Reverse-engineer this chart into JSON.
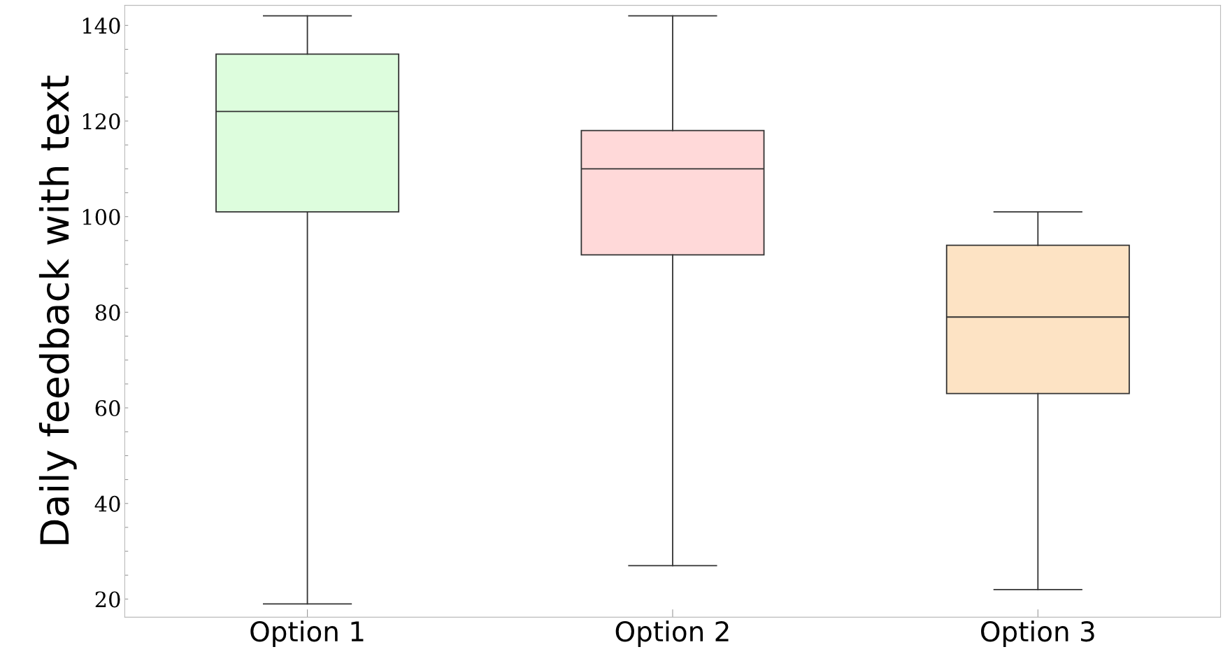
{
  "chart_data": {
    "type": "box",
    "ylabel": "Daily feedback with text",
    "categories": [
      "Option 1",
      "Option 2",
      "Option 3"
    ],
    "colors": [
      "#ddfddd",
      "#ffd9d9",
      "#fde3c4"
    ],
    "boxes": [
      {
        "low": 19,
        "q1": 101,
        "median": 122,
        "q3": 134,
        "high": 142
      },
      {
        "low": 27,
        "q1": 92,
        "median": 110,
        "q3": 118,
        "high": 142
      },
      {
        "low": 22,
        "q1": 63,
        "median": 79,
        "q3": 94,
        "high": 101
      }
    ],
    "ylim": [
      16.2,
      144.2
    ],
    "yticks": [
      20,
      {
        "value": 25,
        "label": null
      },
      {
        "value": 30,
        "label": null
      },
      {
        "value": 35,
        "label": null
      },
      40,
      {
        "value": 45,
        "label": null
      },
      {
        "value": 50,
        "label": null
      },
      {
        "value": 55,
        "label": null
      },
      60,
      {
        "value": 65,
        "label": null
      },
      {
        "value": 70,
        "label": null
      },
      {
        "value": 75,
        "label": null
      },
      80,
      {
        "value": 85,
        "label": null
      },
      {
        "value": 90,
        "label": null
      },
      {
        "value": 95,
        "label": null
      },
      100,
      {
        "value": 105,
        "label": null
      },
      {
        "value": 110,
        "label": null
      },
      {
        "value": 115,
        "label": null
      },
      120,
      {
        "value": 125,
        "label": null
      },
      {
        "value": 130,
        "label": null
      },
      {
        "value": 135,
        "label": null
      },
      140
    ],
    "grid": false
  }
}
